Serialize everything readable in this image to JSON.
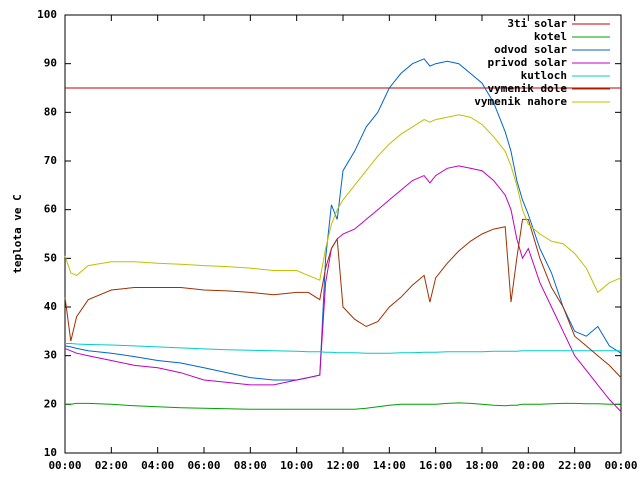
{
  "chart_data": {
    "type": "line",
    "ylabel": "teplota ve C",
    "x": [
      0,
      0.25,
      0.5,
      1,
      2,
      3,
      4,
      5,
      6,
      7,
      8,
      9,
      10,
      10.5,
      11,
      11.25,
      11.5,
      11.75,
      12,
      12.5,
      13,
      13.5,
      14,
      14.5,
      15,
      15.5,
      15.75,
      16,
      16.5,
      17,
      17.5,
      18,
      18.5,
      19,
      19.25,
      19.5,
      19.75,
      20,
      20.5,
      21,
      21.5,
      22,
      22.5,
      23,
      23.5,
      24
    ],
    "xlim": [
      0,
      24
    ],
    "xticks": [
      {
        "value": 0,
        "label": "00:00"
      },
      {
        "value": 2,
        "label": "02:00"
      },
      {
        "value": 4,
        "label": "04:00"
      },
      {
        "value": 6,
        "label": "06:00"
      },
      {
        "value": 8,
        "label": "08:00"
      },
      {
        "value": 10,
        "label": "10:00"
      },
      {
        "value": 12,
        "label": "12:00"
      },
      {
        "value": 14,
        "label": "14:00"
      },
      {
        "value": 16,
        "label": "16:00"
      },
      {
        "value": 18,
        "label": "18:00"
      },
      {
        "value": 20,
        "label": "20:00"
      },
      {
        "value": 22,
        "label": "22:00"
      },
      {
        "value": 24,
        "label": "00:00"
      }
    ],
    "ylim": [
      10,
      100
    ],
    "yticks": [
      10,
      20,
      30,
      40,
      50,
      60,
      70,
      80,
      90,
      100
    ],
    "legend": "top-right",
    "series": [
      {
        "name": "3ti solar",
        "color": "#c00000",
        "values": [
          85,
          85,
          85,
          85,
          85,
          85,
          85,
          85,
          85,
          85,
          85,
          85,
          85,
          85,
          85,
          85,
          85,
          85,
          85,
          85,
          85,
          85,
          85,
          85,
          85,
          85,
          85,
          85,
          85,
          85,
          85,
          85,
          85,
          85,
          85,
          85,
          85,
          85,
          85,
          85,
          85,
          85,
          85,
          85,
          85,
          85
        ]
      },
      {
        "name": "kotel",
        "color": "#00a000",
        "values": [
          20,
          20,
          20.2,
          20.2,
          20,
          19.7,
          19.5,
          19.3,
          19.2,
          19.1,
          19,
          19,
          19,
          19,
          19,
          19,
          19,
          19,
          19,
          19,
          19.2,
          19.5,
          19.8,
          20,
          20,
          20,
          20,
          20,
          20.2,
          20.3,
          20.2,
          20,
          19.8,
          19.7,
          19.8,
          19.8,
          20,
          20,
          20,
          20.1,
          20.2,
          20.2,
          20.1,
          20.1,
          20,
          20
        ]
      },
      {
        "name": "odvod solar",
        "color": "#0066cc",
        "values": [
          32,
          31.8,
          31.5,
          31,
          30.5,
          29.8,
          29,
          28.5,
          27.5,
          26.5,
          25.5,
          25,
          25,
          25.5,
          26,
          50,
          61,
          58,
          68,
          72,
          77,
          80,
          85,
          88,
          90,
          91,
          89.5,
          90,
          90.5,
          90,
          88,
          86,
          82,
          76,
          72,
          66,
          62,
          59,
          52,
          47,
          40,
          35,
          34,
          36,
          32,
          30.5
        ]
      },
      {
        "name": "privod solar",
        "color": "#c000c0",
        "values": [
          31.5,
          31,
          30.5,
          30,
          29,
          28,
          27.5,
          26.5,
          25,
          24.5,
          24,
          24,
          25,
          25.5,
          26,
          45,
          52,
          54,
          55,
          56,
          58,
          60,
          62,
          64,
          66,
          67,
          65.5,
          67,
          68.5,
          69,
          68.5,
          68,
          66,
          63,
          60,
          54,
          50,
          52,
          45,
          40,
          35,
          30,
          27,
          24,
          21,
          18.5
        ]
      },
      {
        "name": "kutloch",
        "color": "#00cccc",
        "values": [
          32.5,
          32.5,
          32.4,
          32.3,
          32.2,
          32,
          31.8,
          31.6,
          31.4,
          31.2,
          31.1,
          31,
          30.9,
          30.8,
          30.8,
          30.7,
          30.7,
          30.6,
          30.6,
          30.6,
          30.5,
          30.5,
          30.5,
          30.6,
          30.6,
          30.7,
          30.7,
          30.7,
          30.8,
          30.8,
          30.8,
          30.8,
          30.9,
          30.9,
          30.9,
          30.9,
          31,
          31,
          31,
          31,
          31,
          31,
          31,
          31,
          31,
          31
        ]
      },
      {
        "name": "vymenik dole",
        "color": "#a03000",
        "values": [
          42,
          33,
          38,
          41.5,
          43.5,
          44,
          44,
          44,
          43.5,
          43.3,
          43,
          42.5,
          43,
          43,
          41.5,
          48,
          52,
          54,
          40,
          37.5,
          36,
          37,
          40,
          42,
          44.5,
          46.5,
          41,
          46,
          49,
          51.5,
          53.5,
          55,
          56,
          56.5,
          41,
          50,
          58,
          58,
          50,
          44,
          40,
          34,
          32,
          30,
          28,
          25.5
        ]
      },
      {
        "name": "vymenik nahore",
        "color": "#c0c000",
        "values": [
          50.5,
          47,
          46.5,
          48.5,
          49.3,
          49.3,
          49,
          48.8,
          48.5,
          48.3,
          48,
          47.5,
          47.5,
          46.5,
          45.5,
          52,
          57,
          60,
          62,
          65,
          68,
          71,
          73.5,
          75.5,
          77,
          78.5,
          78,
          78.5,
          79,
          79.5,
          79,
          77.5,
          75,
          72,
          69,
          65,
          60,
          57,
          55,
          53.5,
          53,
          51,
          48,
          43,
          45,
          46
        ]
      }
    ]
  }
}
